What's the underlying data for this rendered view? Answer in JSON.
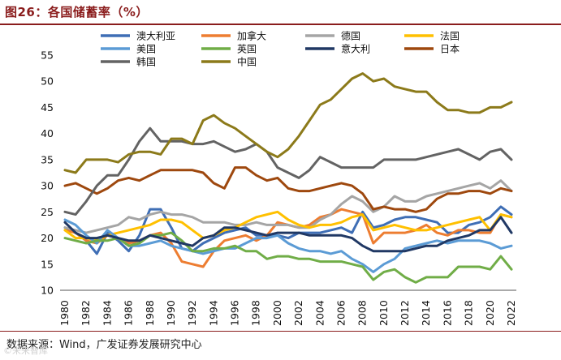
{
  "header": {
    "title": "图26：各国储蓄率（%）"
  },
  "footer": {
    "source": "数据来源：Wind，广发证券发展研究中心",
    "watermark": "©未来智库"
  },
  "chart_data": {
    "type": "line",
    "title": "图26：各国储蓄率（%）",
    "xlabel": "",
    "ylabel": "",
    "ylim": [
      10,
      55
    ],
    "yticks": [
      10,
      15,
      20,
      25,
      30,
      35,
      40,
      45,
      50,
      55
    ],
    "xlim": [
      1980,
      2022
    ],
    "xticks": [
      1980,
      1982,
      1984,
      1986,
      1988,
      1990,
      1992,
      1994,
      1996,
      1998,
      2000,
      2002,
      2004,
      2006,
      2008,
      2010,
      2012,
      2014,
      2016,
      2018,
      2020,
      2022
    ],
    "x": [
      1980,
      1981,
      1982,
      1983,
      1984,
      1985,
      1986,
      1987,
      1988,
      1989,
      1990,
      1991,
      1992,
      1993,
      1994,
      1995,
      1996,
      1997,
      1998,
      1999,
      2000,
      2001,
      2002,
      2003,
      2004,
      2005,
      2006,
      2007,
      2008,
      2009,
      2010,
      2011,
      2012,
      2013,
      2014,
      2015,
      2016,
      2017,
      2018,
      2019,
      2020,
      2021,
      2022
    ],
    "legend_position": "top",
    "series": [
      {
        "name": "澳大利亚",
        "color": "#3f6eb5",
        "values": [
          22.0,
          21.0,
          19.5,
          17.0,
          21.0,
          19.5,
          17.5,
          20.5,
          25.5,
          25.5,
          22.0,
          18.0,
          17.5,
          19.0,
          20.0,
          21.0,
          21.5,
          22.0,
          20.5,
          20.5,
          20.5,
          20.0,
          21.0,
          21.0,
          21.0,
          21.5,
          22.0,
          21.0,
          25.0,
          22.0,
          22.5,
          23.5,
          24.0,
          24.0,
          23.5,
          23.0,
          21.0,
          21.0,
          22.5,
          23.0,
          24.0,
          26.0,
          24.5
        ]
      },
      {
        "name": "加拿大",
        "color": "#ed7d31",
        "values": [
          21.5,
          21.0,
          19.5,
          19.0,
          20.5,
          20.0,
          19.0,
          19.5,
          20.5,
          21.0,
          19.0,
          15.5,
          15.0,
          14.5,
          17.5,
          19.5,
          20.0,
          20.5,
          19.5,
          20.5,
          23.0,
          22.5,
          22.0,
          22.5,
          24.0,
          24.5,
          25.5,
          25.0,
          24.5,
          19.0,
          21.0,
          21.0,
          21.0,
          21.5,
          22.5,
          21.0,
          20.5,
          21.5,
          21.5,
          21.0,
          21.0,
          24.5,
          24.0
        ]
      },
      {
        "name": "德国",
        "color": "#a5a5a5",
        "values": [
          22.0,
          21.5,
          21.0,
          21.5,
          22.0,
          22.5,
          24.0,
          23.5,
          24.5,
          25.0,
          24.5,
          24.5,
          24.0,
          23.0,
          23.0,
          23.0,
          22.5,
          22.5,
          23.0,
          22.5,
          22.5,
          22.5,
          22.0,
          22.0,
          23.5,
          24.5,
          26.5,
          28.0,
          27.0,
          25.0,
          26.0,
          28.0,
          27.0,
          27.0,
          28.0,
          28.5,
          29.0,
          29.5,
          30.0,
          30.5,
          29.5,
          31.0,
          29.0
        ]
      },
      {
        "name": "法国",
        "color": "#ffc000",
        "values": [
          21.5,
          20.0,
          20.0,
          19.5,
          20.5,
          21.0,
          21.5,
          22.0,
          22.5,
          23.5,
          23.5,
          23.0,
          21.5,
          20.0,
          20.5,
          21.5,
          22.0,
          23.0,
          24.0,
          24.5,
          25.0,
          23.5,
          22.5,
          22.0,
          22.5,
          22.5,
          23.0,
          24.0,
          24.5,
          21.5,
          22.0,
          22.5,
          22.0,
          21.5,
          21.5,
          22.0,
          22.5,
          23.0,
          23.5,
          24.0,
          21.5,
          24.5,
          24.0
        ]
      },
      {
        "name": "美国",
        "color": "#5b9bd5",
        "values": [
          23.5,
          22.5,
          20.5,
          19.0,
          21.5,
          20.0,
          18.5,
          18.5,
          19.0,
          19.5,
          18.5,
          18.0,
          17.5,
          17.0,
          17.5,
          18.0,
          18.0,
          19.0,
          20.0,
          20.0,
          20.5,
          19.0,
          18.0,
          17.5,
          17.5,
          17.0,
          17.5,
          16.0,
          15.0,
          13.5,
          15.0,
          16.0,
          18.0,
          18.5,
          19.0,
          19.5,
          19.0,
          19.5,
          19.5,
          19.5,
          19.0,
          18.0,
          18.5
        ]
      },
      {
        "name": "英国",
        "color": "#70ad47",
        "values": [
          20.0,
          19.5,
          19.0,
          19.5,
          19.5,
          20.0,
          18.5,
          19.0,
          20.5,
          20.5,
          21.0,
          19.5,
          17.5,
          17.5,
          18.0,
          18.0,
          18.5,
          17.5,
          17.5,
          16.0,
          16.5,
          16.5,
          16.0,
          16.0,
          15.5,
          15.5,
          15.5,
          15.0,
          14.5,
          12.0,
          13.5,
          14.0,
          12.5,
          11.5,
          12.5,
          12.5,
          12.5,
          14.5,
          14.5,
          14.5,
          14.0,
          16.5,
          14.0
        ]
      },
      {
        "name": "意大利",
        "color": "#203864",
        "values": [
          23.0,
          21.0,
          20.0,
          20.0,
          20.5,
          20.0,
          19.5,
          19.5,
          20.5,
          20.0,
          19.5,
          19.0,
          18.5,
          20.0,
          20.5,
          22.0,
          22.0,
          21.5,
          21.0,
          20.5,
          21.0,
          21.0,
          21.0,
          20.5,
          20.5,
          20.5,
          20.5,
          20.0,
          18.5,
          17.5,
          17.5,
          17.5,
          17.5,
          18.0,
          18.5,
          18.5,
          19.5,
          20.0,
          20.5,
          21.5,
          21.5,
          24.0,
          21.0
        ]
      },
      {
        "name": "日本",
        "color": "#9e480e",
        "values": [
          30.0,
          30.5,
          29.5,
          28.5,
          29.5,
          31.0,
          31.5,
          31.0,
          32.0,
          33.0,
          33.0,
          33.0,
          33.0,
          32.5,
          30.5,
          29.5,
          33.5,
          33.5,
          32.0,
          31.0,
          31.5,
          29.5,
          29.0,
          29.0,
          29.5,
          30.0,
          30.5,
          30.0,
          28.5,
          25.5,
          26.0,
          25.5,
          25.5,
          25.0,
          25.5,
          27.5,
          28.5,
          28.5,
          29.0,
          29.0,
          28.5,
          29.5,
          29.0
        ]
      },
      {
        "name": "韩国",
        "color": "#636363",
        "values": [
          25.0,
          24.5,
          27.0,
          30.0,
          32.0,
          32.0,
          35.0,
          38.5,
          41.0,
          38.5,
          38.5,
          38.5,
          38.0,
          38.0,
          38.5,
          37.5,
          36.5,
          37.0,
          38.0,
          36.5,
          33.5,
          32.5,
          31.5,
          33.0,
          35.5,
          34.5,
          33.5,
          33.5,
          33.5,
          33.5,
          35.0,
          35.0,
          35.0,
          35.0,
          35.5,
          36.0,
          36.5,
          37.0,
          36.0,
          35.0,
          36.5,
          37.0,
          35.0
        ]
      },
      {
        "name": "中国",
        "color": "#8c7a1a",
        "values": [
          33.0,
          32.5,
          35.0,
          35.0,
          35.0,
          34.5,
          36.0,
          36.5,
          36.5,
          36.0,
          39.0,
          39.0,
          38.0,
          42.5,
          43.5,
          42.0,
          41.0,
          39.5,
          38.0,
          36.5,
          35.5,
          37.0,
          39.5,
          42.5,
          45.5,
          46.5,
          48.5,
          50.5,
          51.5,
          50.0,
          50.5,
          49.0,
          48.5,
          48.0,
          48.0,
          46.0,
          44.5,
          44.5,
          44.0,
          44.0,
          45.0,
          45.0,
          46.0
        ]
      }
    ]
  }
}
